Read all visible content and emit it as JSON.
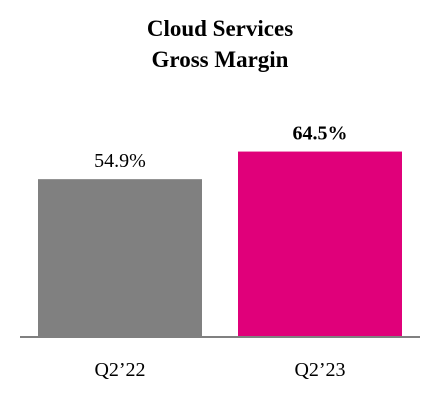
{
  "chart_data": {
    "type": "bar",
    "title": [
      "Cloud Services",
      "Gross Margin"
    ],
    "categories": [
      "Q2’22",
      "Q2’23"
    ],
    "values": [
      54.9,
      64.5
    ],
    "value_labels": [
      "54.9%",
      "64.5%"
    ],
    "value_label_bold": [
      false,
      true
    ],
    "colors": [
      "#808080",
      "#E0007A"
    ],
    "axis_color": "#808080",
    "ylim": [
      0,
      72
    ],
    "grid": false,
    "legend": "none"
  }
}
